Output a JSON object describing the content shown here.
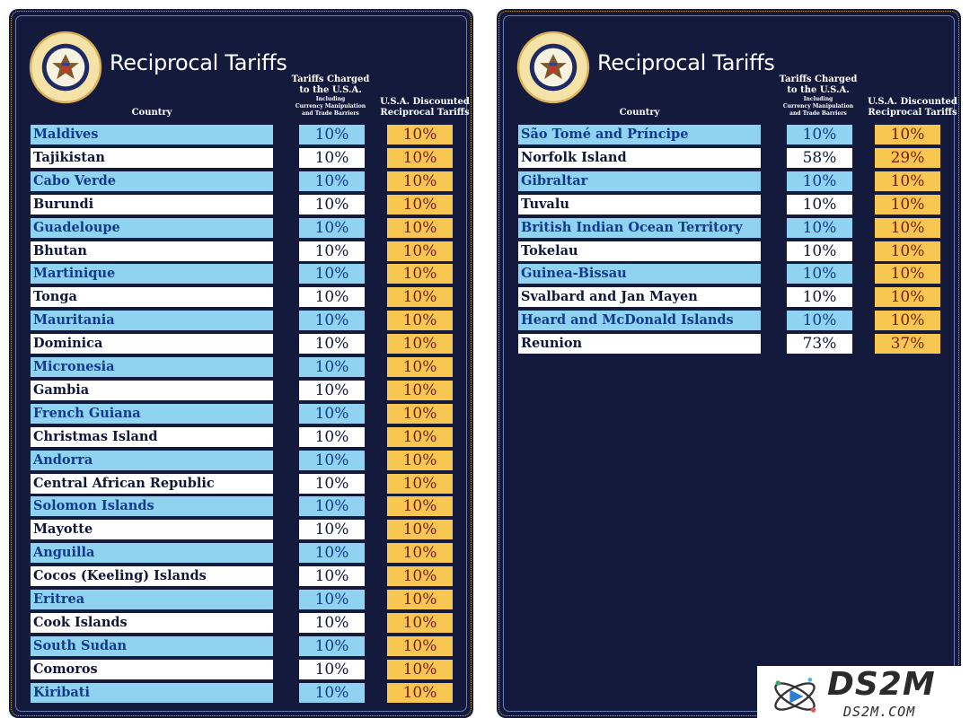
{
  "title": "Reciprocal Tariffs",
  "headers": {
    "country": "Country",
    "charged_l1": "Tariffs Charged",
    "charged_l2": "to the U.S.A.",
    "charged_l3": "Including",
    "charged_l4": "Currency Manipulation",
    "charged_l5": "and Trade Barriers",
    "disc_l1": "U.S.A. Discounted",
    "disc_l2": "Reciprocal Tariffs"
  },
  "seal": {
    "text_top": "PRESIDENT OF THE UNITED STATES",
    "text_bottom": "SEAL OF THE"
  },
  "left_rows": [
    {
      "country": "Maldives",
      "charged": "10%",
      "discounted": "10%"
    },
    {
      "country": "Tajikistan",
      "charged": "10%",
      "discounted": "10%"
    },
    {
      "country": "Cabo Verde",
      "charged": "10%",
      "discounted": "10%"
    },
    {
      "country": "Burundi",
      "charged": "10%",
      "discounted": "10%"
    },
    {
      "country": "Guadeloupe",
      "charged": "10%",
      "discounted": "10%"
    },
    {
      "country": "Bhutan",
      "charged": "10%",
      "discounted": "10%"
    },
    {
      "country": "Martinique",
      "charged": "10%",
      "discounted": "10%"
    },
    {
      "country": "Tonga",
      "charged": "10%",
      "discounted": "10%"
    },
    {
      "country": "Mauritania",
      "charged": "10%",
      "discounted": "10%"
    },
    {
      "country": "Dominica",
      "charged": "10%",
      "discounted": "10%"
    },
    {
      "country": "Micronesia",
      "charged": "10%",
      "discounted": "10%"
    },
    {
      "country": "Gambia",
      "charged": "10%",
      "discounted": "10%"
    },
    {
      "country": "French Guiana",
      "charged": "10%",
      "discounted": "10%"
    },
    {
      "country": "Christmas Island",
      "charged": "10%",
      "discounted": "10%"
    },
    {
      "country": "Andorra",
      "charged": "10%",
      "discounted": "10%"
    },
    {
      "country": "Central African Republic",
      "charged": "10%",
      "discounted": "10%"
    },
    {
      "country": "Solomon Islands",
      "charged": "10%",
      "discounted": "10%"
    },
    {
      "country": "Mayotte",
      "charged": "10%",
      "discounted": "10%"
    },
    {
      "country": "Anguilla",
      "charged": "10%",
      "discounted": "10%"
    },
    {
      "country": "Cocos (Keeling) Islands",
      "charged": "10%",
      "discounted": "10%"
    },
    {
      "country": "Eritrea",
      "charged": "10%",
      "discounted": "10%"
    },
    {
      "country": "Cook Islands",
      "charged": "10%",
      "discounted": "10%"
    },
    {
      "country": "South Sudan",
      "charged": "10%",
      "discounted": "10%"
    },
    {
      "country": "Comoros",
      "charged": "10%",
      "discounted": "10%"
    },
    {
      "country": "Kiribati",
      "charged": "10%",
      "discounted": "10%"
    }
  ],
  "right_rows": [
    {
      "country": "São Tomé and Príncipe",
      "charged": "10%",
      "discounted": "10%"
    },
    {
      "country": "Norfolk Island",
      "charged": "58%",
      "discounted": "29%"
    },
    {
      "country": "Gibraltar",
      "charged": "10%",
      "discounted": "10%"
    },
    {
      "country": "Tuvalu",
      "charged": "10%",
      "discounted": "10%"
    },
    {
      "country": "British Indian Ocean Territory",
      "charged": "10%",
      "discounted": "10%"
    },
    {
      "country": "Tokelau",
      "charged": "10%",
      "discounted": "10%"
    },
    {
      "country": "Guinea-Bissau",
      "charged": "10%",
      "discounted": "10%"
    },
    {
      "country": "Svalbard and Jan Mayen",
      "charged": "10%",
      "discounted": "10%"
    },
    {
      "country": "Heard and McDonald Islands",
      "charged": "10%",
      "discounted": "10%"
    },
    {
      "country": "Reunion",
      "charged": "73%",
      "discounted": "37%"
    }
  ],
  "watermark": {
    "name": "DS2M",
    "url": "DS2M.COM"
  },
  "colors": {
    "panel_bg": "#141a3c",
    "row_blue": "#8fd3f1",
    "row_white": "#ffffff",
    "discount_yellow": "#f7c752",
    "discount_text": "#7a1d12",
    "gold_border": "#c9a75a"
  }
}
